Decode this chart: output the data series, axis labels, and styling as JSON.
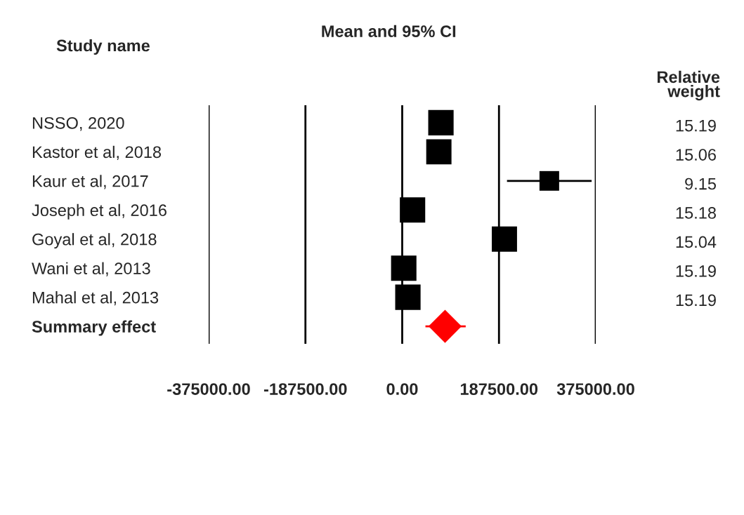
{
  "chart_data": {
    "type": "scatter",
    "orientation": "horizontal",
    "title": "Mean and 95% CI",
    "ylabel": "Study name",
    "categories": [
      "NSSO, 2020",
      "Kastor et al, 2018",
      "Kaur et al, 2017",
      "Joseph et al, 2016",
      "Goyal et al, 2018",
      "Wani et al, 2013",
      "Mahal et al, 2013",
      "Summary effect"
    ],
    "series": [
      {
        "type": "bubble",
        "marker": "square",
        "color": "#000000",
        "values": [
          75000,
          71000,
          285000,
          20000,
          198000,
          3000,
          11000,
          null
        ],
        "sizes": [
          1,
          0.99,
          0.6,
          1,
          0.99,
          1,
          1,
          null
        ],
        "errors": [
          null,
          null,
          [
            203000,
            367000
          ],
          null,
          null,
          null,
          null,
          null
        ]
      },
      {
        "marker": "diamond",
        "color": "#ff0000",
        "values": [
          null,
          null,
          null,
          null,
          null,
          null,
          null,
          83000
        ],
        "errors": [
          null,
          null,
          null,
          null,
          null,
          null,
          null,
          [
            45000,
            123000
          ]
        ]
      }
    ],
    "annotations": [
      "Relative weight",
      "15.19",
      "15.06",
      "9.15",
      "15.18",
      "15.04",
      "15.19",
      "15.19"
    ],
    "xlim": [
      -375000,
      375000
    ],
    "xticks": [
      {
        "value": -375000,
        "label": "-375000.00"
      },
      {
        "value": -187500,
        "label": "-187500.00"
      },
      {
        "value": 0,
        "label": "0.00"
      },
      {
        "value": 187500,
        "label": "187500.00"
      },
      {
        "value": 375000,
        "label": "375000.00"
      }
    ],
    "grid": "x",
    "legend": false
  }
}
